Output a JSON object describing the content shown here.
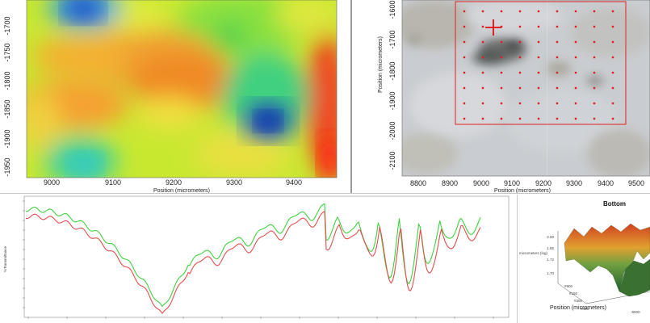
{
  "heatmap": {
    "x_ticks": [
      "9000",
      "9100",
      "9200",
      "9300",
      "9400"
    ],
    "y_ticks": [
      "-1700",
      "-1750",
      "-1800",
      "-1850",
      "-1900",
      "-1950"
    ],
    "xlabel": "Position (micrometers)"
  },
  "micrograph": {
    "x_ticks": [
      "8800",
      "8900",
      "9000",
      "9100",
      "9200",
      "9300",
      "9400",
      "9500"
    ],
    "y_ticks": [
      "-1600",
      "-1700",
      "-1800",
      "-1900",
      "-2000",
      "-2100"
    ],
    "xlabel": "Position (micrometers)",
    "ylabel": "Position (micrometers)",
    "grid_color": "#e02020",
    "cursor_color": "#e01010"
  },
  "spectrum": {
    "ylabel": "%Transmittance",
    "series_colors": [
      "#e05050",
      "#40d040"
    ]
  },
  "surface": {
    "title": "Bottom",
    "zlabel": "micrometers (log)",
    "xlabel": "Position (micrometers)"
  },
  "chart_data": {
    "type": "heatmap",
    "xlabel": "Position (micrometers)",
    "x_ticks": [
      9000,
      9100,
      9200,
      9300,
      9400
    ],
    "y_ticks": [
      -1700,
      -1750,
      -1800,
      -1850,
      -1900,
      -1950
    ]
  }
}
